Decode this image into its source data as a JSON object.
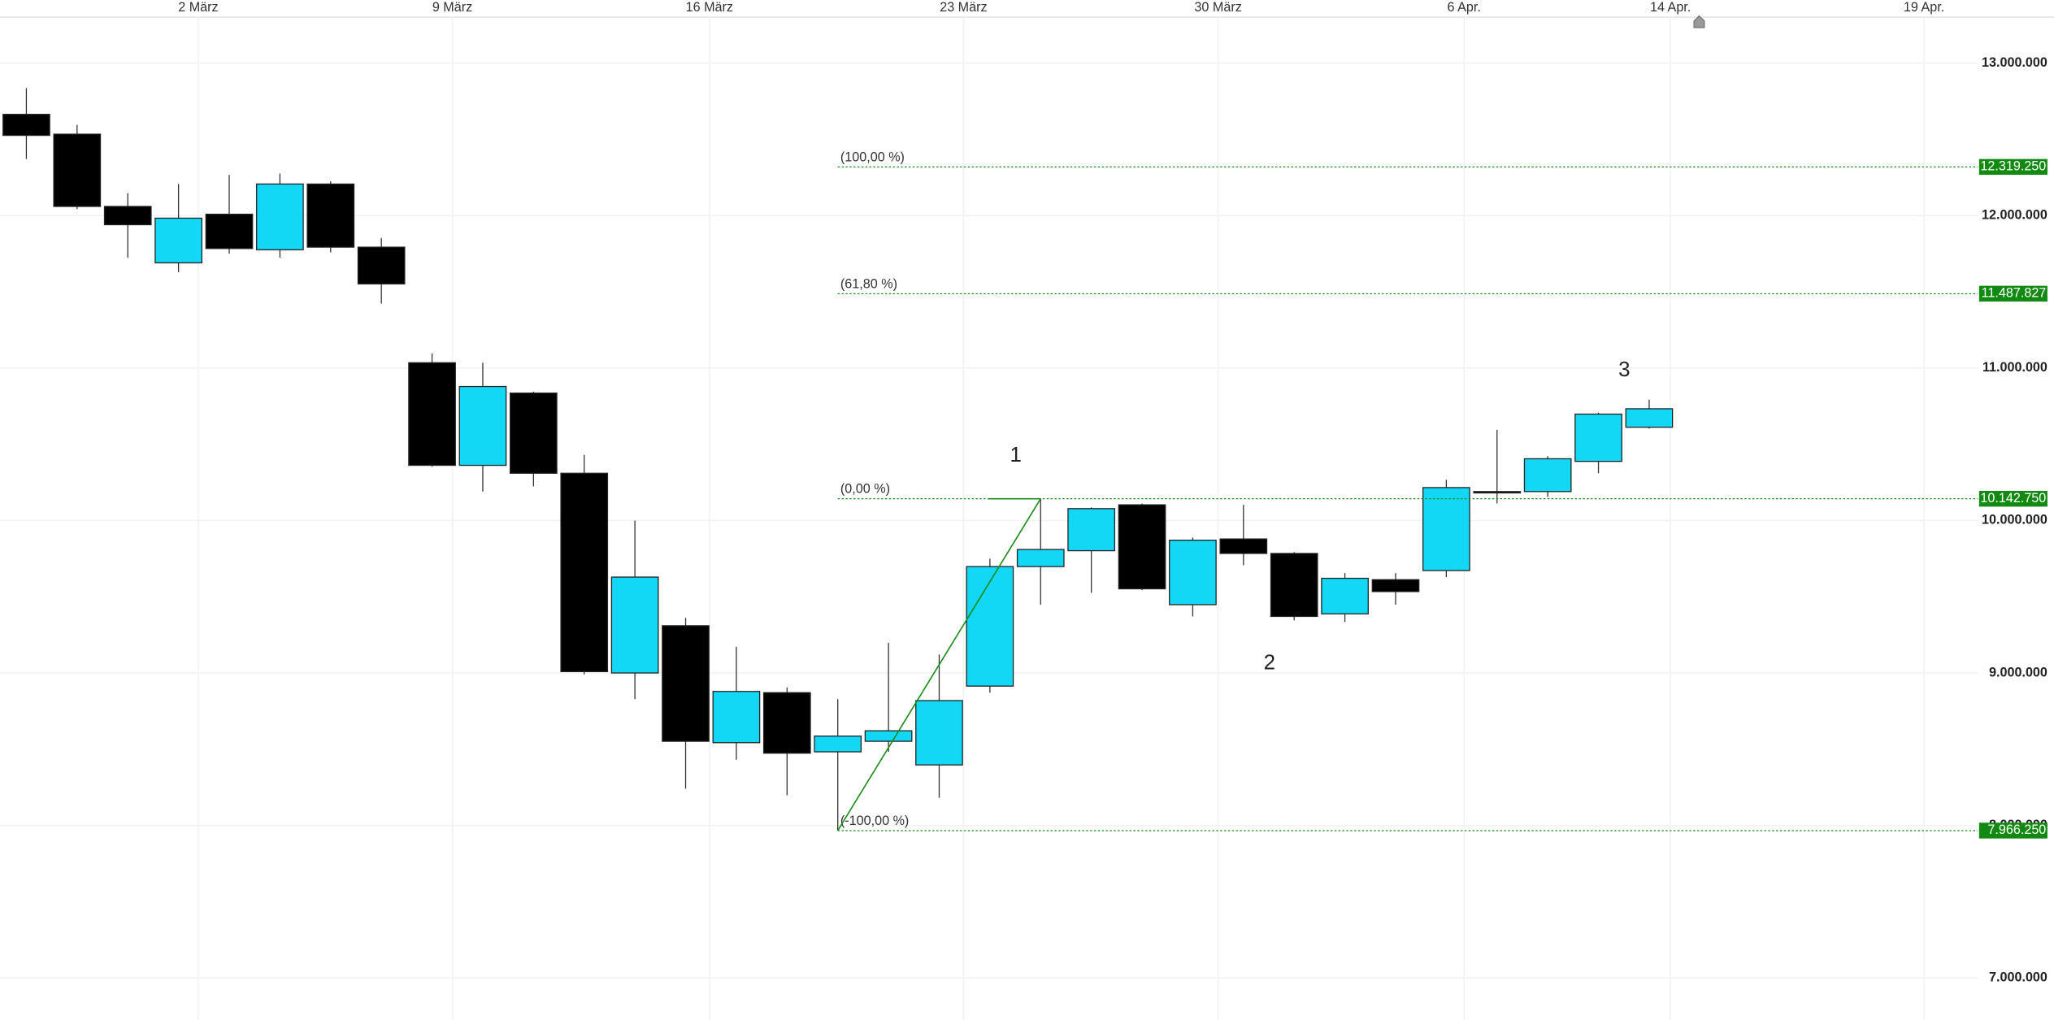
{
  "chart_data": {
    "type": "candlestick",
    "categories": [
      null,
      null,
      null,
      null,
      null,
      null,
      null,
      null,
      null,
      null,
      null,
      null,
      null,
      null,
      null,
      null,
      null,
      null,
      null,
      null,
      null,
      null,
      null,
      null,
      null,
      null,
      null,
      null,
      null,
      null,
      null,
      null,
      null
    ],
    "open": [
      12664000,
      12534000,
      12060000,
      11690000,
      12009000,
      11776000,
      12207000,
      11793000,
      11035000,
      10362000,
      10836000,
      10310000,
      9000000,
      9310000,
      8543000,
      8871000,
      8483000,
      8552000,
      8397000,
      8914000,
      9698000,
      9802000,
      10103000,
      9448000,
      9879000,
      9784000,
      9388000,
      9612000,
      9672000,
      10190000,
      10190000,
      10388000,
      10612000
    ],
    "high": [
      12836000,
      12595000,
      12147000,
      12207000,
      12267000,
      12276000,
      12224000,
      11853000,
      11095000,
      11035000,
      10845000,
      10431000,
      10000000,
      9362000,
      9172000,
      8905000,
      8828000,
      9198000,
      9121000,
      9750000,
      10142750,
      10086000,
      10112000,
      9888000,
      10103000,
      9793000,
      9655000,
      9655000,
      10267000,
      10595000,
      10422000,
      10707000,
      10793000
    ],
    "low": [
      12371000,
      12043000,
      11724000,
      11629000,
      11750000,
      11724000,
      11759000,
      11423000,
      10353000,
      10190000,
      10224000,
      8991000,
      8828000,
      8241000,
      8431000,
      8198000,
      7966250,
      8483000,
      8181000,
      8871000,
      9448000,
      9526000,
      9543000,
      9371000,
      9707000,
      9345000,
      9336000,
      9448000,
      9629000,
      10112000,
      10155000,
      10310000,
      10603000
    ],
    "close": [
      12526000,
      12060000,
      11940000,
      11983000,
      11784000,
      12207000,
      11793000,
      11552000,
      10362000,
      10879000,
      10310000,
      9009000,
      9629000,
      8552000,
      8879000,
      8474000,
      8586000,
      8621000,
      8819000,
      9698000,
      9810000,
      10078000,
      9552000,
      9871000,
      9784000,
      9371000,
      9621000,
      9534000,
      10216000,
      10181000,
      10405000,
      10698000,
      10733000
    ],
    "up_color": "#13d8f5",
    "down_color": "#000000",
    "xlim": [
      -0.52,
      38.48
    ],
    "xticks": [
      {
        "value": 3.39,
        "label": "2 März"
      },
      {
        "value": 8.4,
        "label": "9 März"
      },
      {
        "value": 13.47,
        "label": "16 März"
      },
      {
        "value": 18.48,
        "label": "23 März"
      },
      {
        "value": 23.5,
        "label": "30 März"
      },
      {
        "value": 28.35,
        "label": "6 Apr."
      },
      {
        "value": 32.42,
        "label": "14 Apr."
      },
      {
        "value": 37.42,
        "label": "19 Apr."
      }
    ],
    "ylim": [
      6724000,
      13414000
    ],
    "yticks": [
      {
        "value": 7000000,
        "label": "7.000.000"
      },
      {
        "value": 8000000,
        "label": "8.000.000"
      },
      {
        "value": 9000000,
        "label": "9.000.000"
      },
      {
        "value": 10000000,
        "label": "10.000.000"
      },
      {
        "value": 11000000,
        "label": "11.000.000"
      },
      {
        "value": 12000000,
        "label": "12.000.000"
      },
      {
        "value": 13000000,
        "label": "13.000.000"
      }
    ],
    "grid": true,
    "fib": {
      "color": "#1a8a1a",
      "start": 16,
      "end": 20,
      "levels": [
        {
          "value": 12319250,
          "label": "(100,00 %)",
          "price_label": "12.319.250"
        },
        {
          "value": 11487827,
          "label": "(61,80 %)",
          "price_label": "11.487.827"
        },
        {
          "value": 10142750,
          "label": "(0,00 %)",
          "price_label": "10.142.750"
        },
        {
          "value": 7966250,
          "label": "(-100,00 %)",
          "price_label": "7.966.250"
        }
      ]
    },
    "annotations": [
      "1",
      "2",
      "3"
    ]
  }
}
